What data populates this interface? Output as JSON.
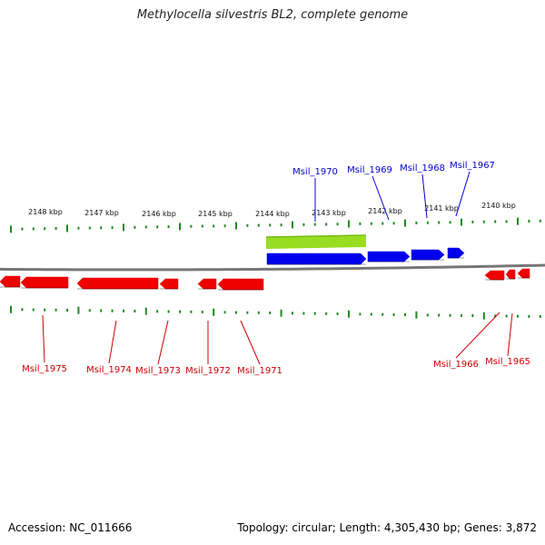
{
  "title": "Methylocella silvestris BL2, complete genome",
  "footer": {
    "accession": "Accession: NC_011666",
    "summary": "Topology: circular; Length: 4,305,430 bp; Genes: 3,872"
  },
  "colors": {
    "forward_strand": "#0000ee",
    "reverse_strand": "#ee0000",
    "highlight": "#99dd22",
    "ticks": "#228822",
    "backbone": "#777777",
    "forward_label": "#0000cc",
    "reverse_label": "#cc0000"
  },
  "scale": {
    "unit": "kbp",
    "labels": [
      "2148 kbp",
      "2147 kbp",
      "2146 kbp",
      "2145 kbp",
      "2144 kbp",
      "2143 kbp",
      "2142 kbp",
      "2141 kbp",
      "2140 kbp"
    ]
  },
  "genes": {
    "forward": [
      "Msil_1970",
      "Msil_1969",
      "Msil_1968",
      "Msil_1967"
    ],
    "reverse": [
      "Msil_1975",
      "Msil_1974",
      "Msil_1973",
      "Msil_1972",
      "Msil_1971",
      "Msil_1966",
      "Msil_1965"
    ]
  }
}
